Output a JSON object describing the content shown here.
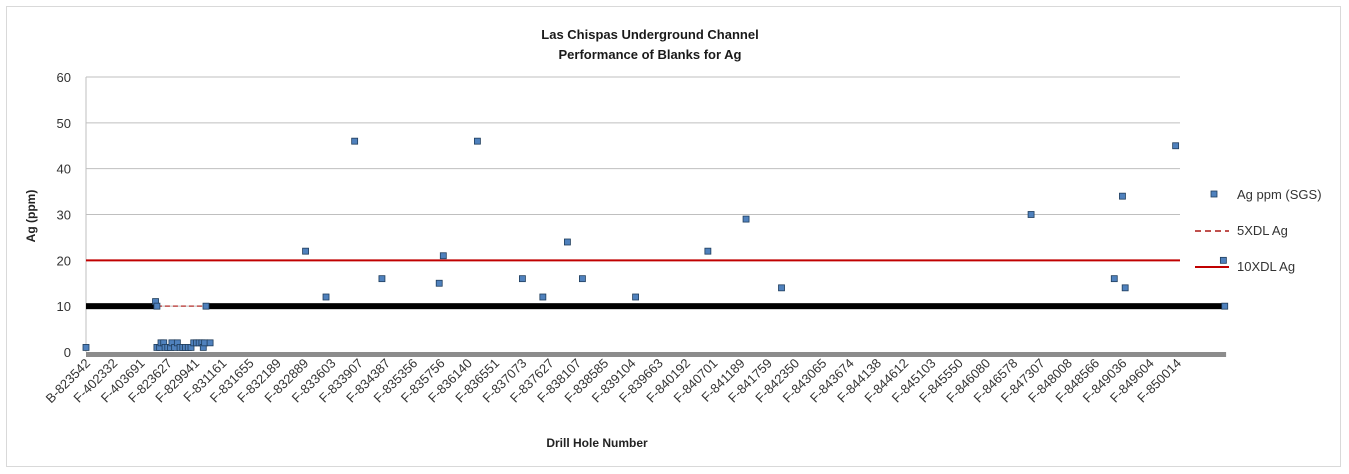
{
  "chart_data": {
    "type": "scatter",
    "title": "Las Chispas Underground Channel",
    "subtitle": "Performance of  Blanks for Ag",
    "xlabel": "Drill Hole Number",
    "ylabel": "Ag (ppm)",
    "ylim": [
      0,
      60
    ],
    "yticks": [
      0,
      10,
      20,
      30,
      40,
      50,
      60
    ],
    "grid": true,
    "legend_position": "right",
    "categories": [
      "B-823542",
      "F-402332",
      "F-403691",
      "F-823627",
      "F-829941",
      "F-831161",
      "F-831655",
      "F-832189",
      "F-832889",
      "F-833603",
      "F-833907",
      "F-834387",
      "F-835356",
      "F-835756",
      "F-836140",
      "F-836551",
      "F-837073",
      "F-837627",
      "F-838107",
      "F-838585",
      "F-839104",
      "F-839663",
      "F-840192",
      "F-840701",
      "F-841189",
      "F-841759",
      "F-842350",
      "F-843065",
      "F-843674",
      "F-844138",
      "F-844612",
      "F-845103",
      "F-845550",
      "F-846080",
      "F-846578",
      "F-847307",
      "F-848008",
      "F-848566",
      "F-849036",
      "F-849604",
      "F-850014"
    ],
    "series": [
      {
        "name": "Ag ppm (SGS)",
        "color": "#4f81bd",
        "marker": "square",
        "points": [
          {
            "x": 0.0,
            "y": 1
          },
          {
            "x": 2.55,
            "y": 11
          },
          {
            "x": 2.6,
            "y": 10
          },
          {
            "x": 2.6,
            "y": 1
          },
          {
            "x": 2.7,
            "y": 1
          },
          {
            "x": 2.75,
            "y": 2
          },
          {
            "x": 2.85,
            "y": 2
          },
          {
            "x": 2.9,
            "y": 1
          },
          {
            "x": 3.0,
            "y": 1
          },
          {
            "x": 3.1,
            "y": 1
          },
          {
            "x": 3.15,
            "y": 2
          },
          {
            "x": 3.25,
            "y": 1
          },
          {
            "x": 3.35,
            "y": 2
          },
          {
            "x": 3.45,
            "y": 1
          },
          {
            "x": 3.55,
            "y": 1
          },
          {
            "x": 3.65,
            "y": 1
          },
          {
            "x": 3.75,
            "y": 1
          },
          {
            "x": 3.85,
            "y": 1
          },
          {
            "x": 3.95,
            "y": 2
          },
          {
            "x": 4.05,
            "y": 2
          },
          {
            "x": 4.15,
            "y": 2
          },
          {
            "x": 4.25,
            "y": 2
          },
          {
            "x": 4.3,
            "y": 1
          },
          {
            "x": 4.35,
            "y": 2
          },
          {
            "x": 4.4,
            "y": 10
          },
          {
            "x": 4.55,
            "y": 2
          },
          {
            "x": 8.05,
            "y": 22
          },
          {
            "x": 8.8,
            "y": 12
          },
          {
            "x": 9.85,
            "y": 46
          },
          {
            "x": 10.85,
            "y": 16
          },
          {
            "x": 12.95,
            "y": 15
          },
          {
            "x": 13.1,
            "y": 21
          },
          {
            "x": 14.35,
            "y": 46
          },
          {
            "x": 16.0,
            "y": 16
          },
          {
            "x": 16.75,
            "y": 12
          },
          {
            "x": 17.65,
            "y": 24
          },
          {
            "x": 18.2,
            "y": 16
          },
          {
            "x": 20.15,
            "y": 12
          },
          {
            "x": 22.8,
            "y": 22
          },
          {
            "x": 24.2,
            "y": 29
          },
          {
            "x": 25.5,
            "y": 14
          },
          {
            "x": 34.65,
            "y": 30
          },
          {
            "x": 37.7,
            "y": 16
          },
          {
            "x": 38.0,
            "y": 34
          },
          {
            "x": 38.1,
            "y": 14
          },
          {
            "x": 39.95,
            "y": 45
          },
          {
            "x": 41.7,
            "y": 20
          },
          {
            "x": 41.75,
            "y": 10
          }
        ],
        "baseline_value": 10,
        "baseline_x_ranges": [
          [
            0,
            2.55
          ],
          [
            4.45,
            41.8
          ]
        ],
        "floor_value": 0,
        "floor_x_range": [
          0,
          41.8
        ]
      },
      {
        "name": "5XDL Ag",
        "color": "#c0504d",
        "style": "dashed",
        "segments": [
          {
            "x1": 2.6,
            "x2": 4.4,
            "y": 10
          }
        ]
      },
      {
        "name": "10XDL Ag",
        "color": "#c00000",
        "style": "solid",
        "y": 20
      }
    ]
  }
}
